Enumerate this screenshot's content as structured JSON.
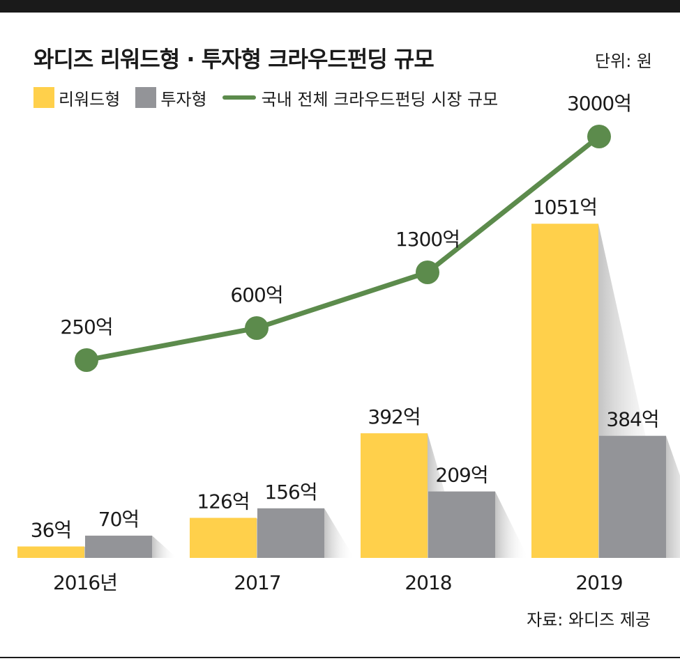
{
  "header": {
    "title": "와디즈 리워드형 · 투자형 크라우드펀딩 규모",
    "unit": "단위: 원"
  },
  "legend": {
    "reward": "리워드형",
    "investment": "투자형",
    "total": "국내 전체 크라우드펀딩 시장 규모"
  },
  "footer": {
    "source": "자료: 와디즈 제공"
  },
  "colors": {
    "reward": "#FFD04B",
    "investment": "#939498",
    "total": "#5C8B4C",
    "text": "#1a1a1a"
  },
  "chart_data": {
    "type": "bar",
    "categories": [
      "2016년",
      "2017",
      "2018",
      "2019"
    ],
    "series": [
      {
        "name": "리워드형",
        "kind": "bar",
        "values": [
          36,
          126,
          392,
          1051
        ],
        "labels": [
          "36억",
          "126억",
          "392억",
          "1051억"
        ]
      },
      {
        "name": "투자형",
        "kind": "bar",
        "values": [
          70,
          156,
          209,
          384
        ],
        "labels": [
          "70억",
          "156억",
          "209억",
          "384억"
        ]
      },
      {
        "name": "국내 전체 크라우드펀딩 시장 규모",
        "kind": "line",
        "values": [
          250,
          600,
          1300,
          3000
        ],
        "labels": [
          "250억",
          "600억",
          "1300억",
          "3000억"
        ]
      }
    ],
    "unit": "억 원",
    "grid": false,
    "legend_position": "top-left"
  }
}
